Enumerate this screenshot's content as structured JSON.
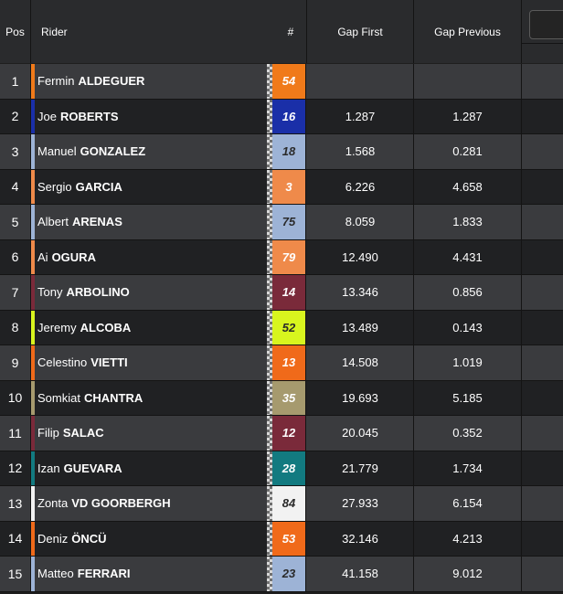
{
  "header": {
    "pos": "Pos",
    "rider": "Rider",
    "number": "#",
    "gap_first": "Gap First",
    "gap_previous": "Gap Previous"
  },
  "rows": [
    {
      "pos": "1",
      "first": "Fermin",
      "last": "ALDEGUER",
      "number": "54",
      "gap_first": "",
      "gap_previous": "",
      "color": "#f07a1a",
      "num_bg": "#f07a1a",
      "num_fg": "#ffffff"
    },
    {
      "pos": "2",
      "first": "Joe",
      "last": "ROBERTS",
      "number": "16",
      "gap_first": "1.287",
      "gap_previous": "1.287",
      "color": "#1a2fa8",
      "num_bg": "#1a2fa8",
      "num_fg": "#ffffff"
    },
    {
      "pos": "3",
      "first": "Manuel",
      "last": "GONZALEZ",
      "number": "18",
      "gap_first": "1.568",
      "gap_previous": "0.281",
      "color": "#9db3d6",
      "num_bg": "#9db3d6",
      "num_fg": "#2a2a2a"
    },
    {
      "pos": "4",
      "first": "Sergio",
      "last": "GARCIA",
      "number": "3",
      "gap_first": "6.226",
      "gap_previous": "4.658",
      "color": "#ef8a4a",
      "num_bg": "#ef8a4a",
      "num_fg": "#ffffff"
    },
    {
      "pos": "5",
      "first": "Albert",
      "last": "ARENAS",
      "number": "75",
      "gap_first": "8.059",
      "gap_previous": "1.833",
      "color": "#9db3d6",
      "num_bg": "#9db3d6",
      "num_fg": "#2a2a2a"
    },
    {
      "pos": "6",
      "first": "Ai",
      "last": "OGURA",
      "number": "79",
      "gap_first": "12.490",
      "gap_previous": "4.431",
      "color": "#ef8a4a",
      "num_bg": "#ef8a4a",
      "num_fg": "#ffffff"
    },
    {
      "pos": "7",
      "first": "Tony",
      "last": "ARBOLINO",
      "number": "14",
      "gap_first": "13.346",
      "gap_previous": "0.856",
      "color": "#7a2a3a",
      "num_bg": "#7a2a3a",
      "num_fg": "#ffffff"
    },
    {
      "pos": "8",
      "first": "Jeremy",
      "last": "ALCOBA",
      "number": "52",
      "gap_first": "13.489",
      "gap_previous": "0.143",
      "color": "#d8f51e",
      "num_bg": "#d8f51e",
      "num_fg": "#2a2a2a"
    },
    {
      "pos": "9",
      "first": "Celestino",
      "last": "VIETTI",
      "number": "13",
      "gap_first": "14.508",
      "gap_previous": "1.019",
      "color": "#f06a1a",
      "num_bg": "#f06a1a",
      "num_fg": "#ffffff"
    },
    {
      "pos": "10",
      "first": "Somkiat",
      "last": "CHANTRA",
      "number": "35",
      "gap_first": "19.693",
      "gap_previous": "5.185",
      "color": "#a69a6e",
      "num_bg": "#a69a6e",
      "num_fg": "#ffffff"
    },
    {
      "pos": "11",
      "first": "Filip",
      "last": "SALAC",
      "number": "12",
      "gap_first": "20.045",
      "gap_previous": "0.352",
      "color": "#7a2a3a",
      "num_bg": "#7a2a3a",
      "num_fg": "#ffffff"
    },
    {
      "pos": "12",
      "first": "Izan",
      "last": "GUEVARA",
      "number": "28",
      "gap_first": "21.779",
      "gap_previous": "1.734",
      "color": "#127a80",
      "num_bg": "#127a80",
      "num_fg": "#ffffff"
    },
    {
      "pos": "13",
      "first": "Zonta",
      "last": "VD GOORBERGH",
      "number": "84",
      "gap_first": "27.933",
      "gap_previous": "6.154",
      "color": "#f2f2f2",
      "num_bg": "#f2f2f2",
      "num_fg": "#2a2a2a"
    },
    {
      "pos": "14",
      "first": "Deniz",
      "last": "ÖNCÜ",
      "number": "53",
      "gap_first": "32.146",
      "gap_previous": "4.213",
      "color": "#f06a1a",
      "num_bg": "#f06a1a",
      "num_fg": "#ffffff"
    },
    {
      "pos": "15",
      "first": "Matteo",
      "last": "FERRARI",
      "number": "23",
      "gap_first": "41.158",
      "gap_previous": "9.012",
      "color": "#9db3d6",
      "num_bg": "#9db3d6",
      "num_fg": "#2a2a2a"
    }
  ]
}
